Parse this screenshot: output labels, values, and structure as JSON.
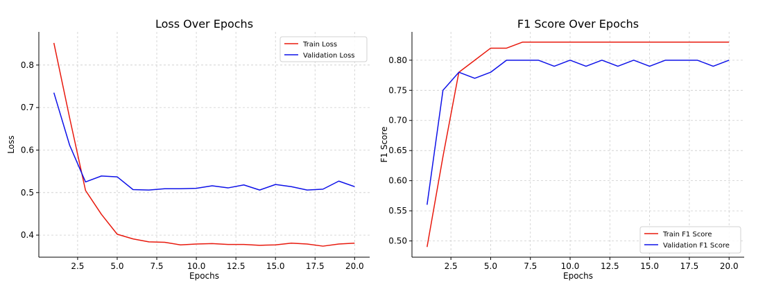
{
  "chart_data": [
    {
      "type": "line",
      "title": "Loss Over Epochs",
      "xlabel": "Epochs",
      "ylabel": "Loss",
      "xlim": [
        0.05,
        20.95
      ],
      "ylim": [
        0.348,
        0.878
      ],
      "xticks": [
        2.5,
        5.0,
        7.5,
        10.0,
        12.5,
        15.0,
        17.5,
        20.0
      ],
      "xtick_labels": [
        "2.5",
        "5.0",
        "7.5",
        "10.0",
        "12.5",
        "15.0",
        "17.5",
        "20.0"
      ],
      "yticks": [
        0.4,
        0.5,
        0.6,
        0.7,
        0.8
      ],
      "ytick_labels": [
        "0.4",
        "0.5",
        "0.6",
        "0.7",
        "0.8"
      ],
      "grid": true,
      "legend": "top-right",
      "x": [
        1,
        2,
        3,
        4,
        5,
        6,
        7,
        8,
        9,
        10,
        11,
        12,
        13,
        14,
        15,
        16,
        17,
        18,
        19,
        20
      ],
      "series": [
        {
          "name": "Train Loss",
          "color": "#e8180c",
          "values": [
            0.852,
            0.675,
            0.505,
            0.449,
            0.402,
            0.391,
            0.384,
            0.383,
            0.377,
            0.379,
            0.38,
            0.378,
            0.378,
            0.376,
            0.377,
            0.381,
            0.379,
            0.374,
            0.379,
            0.381
          ]
        },
        {
          "name": "Validation Loss",
          "color": "#0c10e8",
          "values": [
            0.735,
            0.611,
            0.525,
            0.539,
            0.537,
            0.507,
            0.506,
            0.509,
            0.509,
            0.51,
            0.516,
            0.511,
            0.518,
            0.506,
            0.519,
            0.514,
            0.506,
            0.508,
            0.527,
            0.514
          ]
        }
      ]
    },
    {
      "type": "line",
      "title": "F1 Score Over Epochs",
      "xlabel": "Epochs",
      "ylabel": "F1 Score",
      "xlim": [
        0.05,
        20.95
      ],
      "ylim": [
        0.473,
        0.847
      ],
      "xticks": [
        2.5,
        5.0,
        7.5,
        10.0,
        12.5,
        15.0,
        17.5,
        20.0
      ],
      "xtick_labels": [
        "2.5",
        "5.0",
        "7.5",
        "10.0",
        "12.5",
        "15.0",
        "17.5",
        "20.0"
      ],
      "yticks": [
        0.5,
        0.55,
        0.6,
        0.65,
        0.7,
        0.75,
        0.8
      ],
      "ytick_labels": [
        "0.50",
        "0.55",
        "0.60",
        "0.65",
        "0.70",
        "0.75",
        "0.80"
      ],
      "grid": true,
      "legend": "bottom-right",
      "x": [
        1,
        2,
        3,
        4,
        5,
        6,
        7,
        8,
        9,
        10,
        11,
        12,
        13,
        14,
        15,
        16,
        17,
        18,
        19,
        20
      ],
      "series": [
        {
          "name": "Train F1 Score",
          "color": "#e8180c",
          "values": [
            0.49,
            0.64,
            0.78,
            0.8,
            0.82,
            0.82,
            0.83,
            0.83,
            0.83,
            0.83,
            0.83,
            0.83,
            0.83,
            0.83,
            0.83,
            0.83,
            0.83,
            0.83,
            0.83,
            0.83
          ]
        },
        {
          "name": "Validation F1 Score",
          "color": "#0c10e8",
          "values": [
            0.56,
            0.75,
            0.78,
            0.77,
            0.78,
            0.8,
            0.8,
            0.8,
            0.79,
            0.8,
            0.79,
            0.8,
            0.79,
            0.8,
            0.79,
            0.8,
            0.8,
            0.8,
            0.79,
            0.8
          ]
        }
      ]
    }
  ]
}
